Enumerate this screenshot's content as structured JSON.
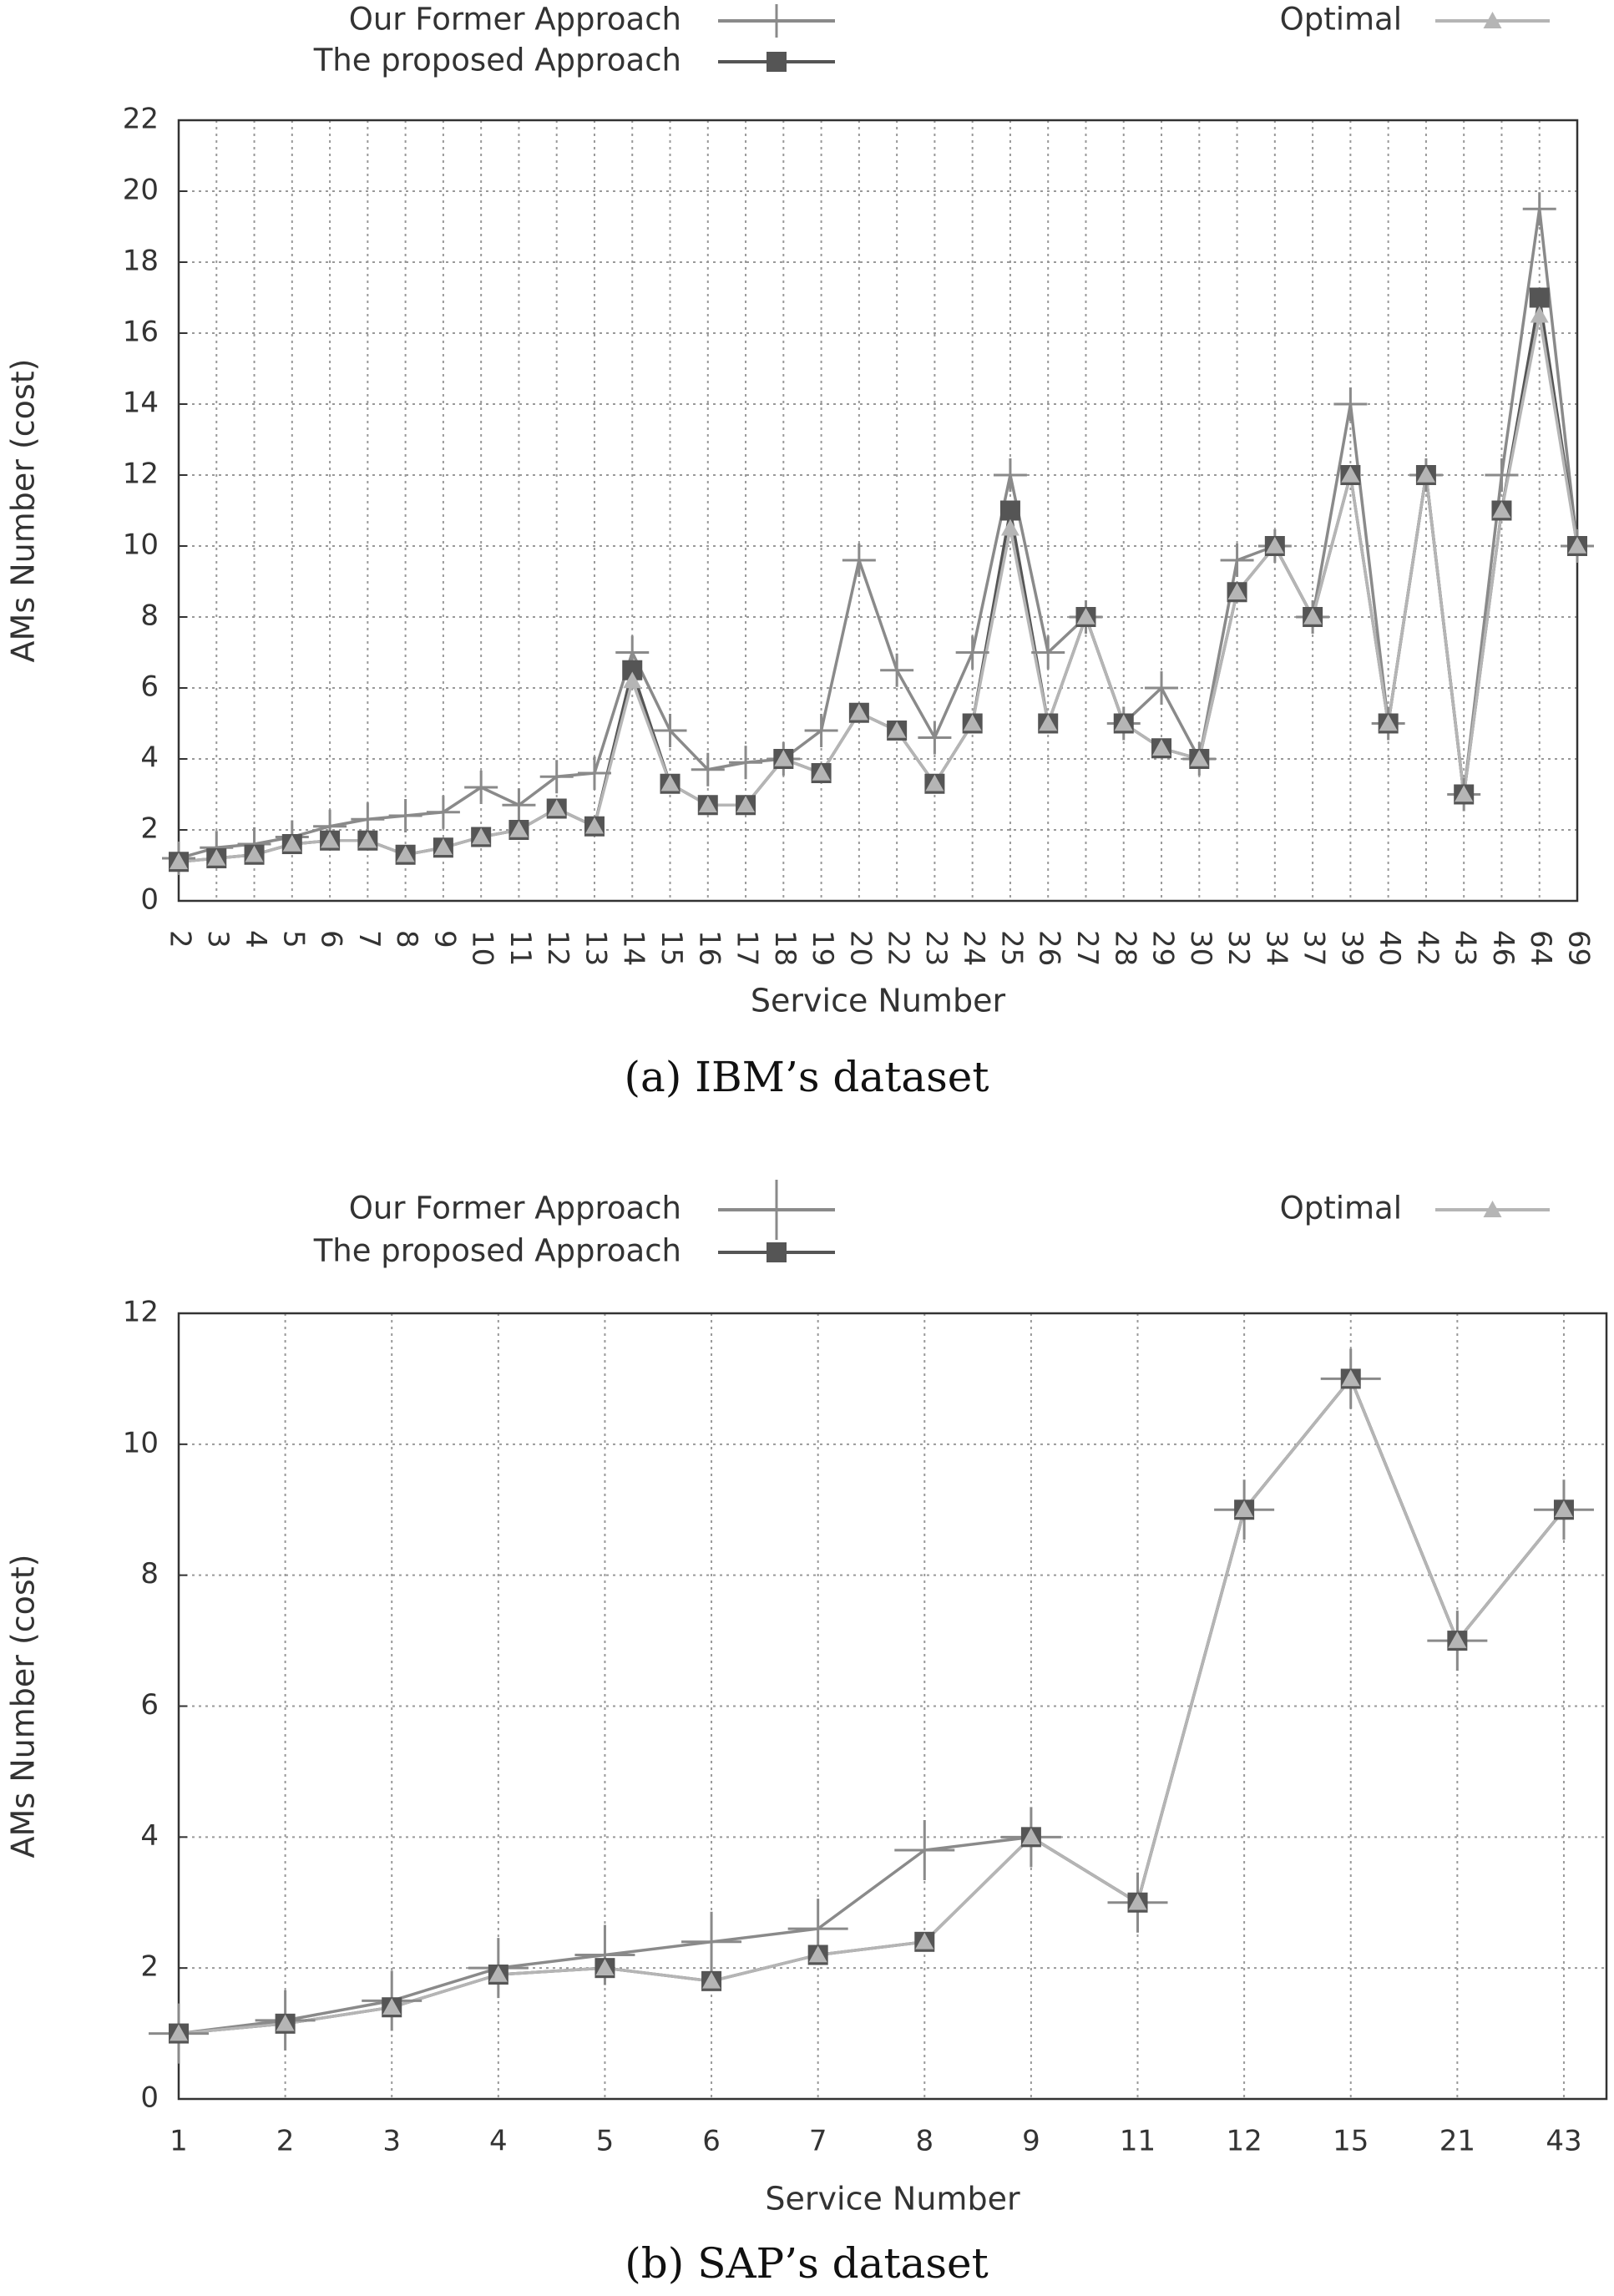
{
  "chart_data": [
    {
      "type": "line",
      "title": "(a) IBM’s dataset",
      "x_label": "Service Number",
      "y_label": "AMs Number (cost)",
      "categories": [
        "2",
        "3",
        "4",
        "5",
        "6",
        "7",
        "8",
        "9",
        "10",
        "11",
        "12",
        "13",
        "14",
        "15",
        "16",
        "17",
        "18",
        "19",
        "20",
        "22",
        "23",
        "24",
        "25",
        "26",
        "27",
        "28",
        "29",
        "30",
        "32",
        "34",
        "37",
        "39",
        "40",
        "42",
        "43",
        "46",
        "64",
        "69"
      ],
      "series": [
        {
          "name": "Our Former Approach",
          "color": "#8a8a8a",
          "marker": "plus",
          "values": [
            1.2,
            1.5,
            1.6,
            1.8,
            2.1,
            2.3,
            2.4,
            2.5,
            3.2,
            2.7,
            3.5,
            3.6,
            7,
            4.8,
            3.7,
            3.9,
            4,
            4.8,
            9.6,
            6.5,
            4.6,
            7,
            12,
            7,
            8,
            5,
            6,
            4,
            9.6,
            10,
            8,
            14,
            5,
            12,
            3,
            12,
            19.5,
            10
          ]
        },
        {
          "name": "The proposed Approach",
          "color": "#555555",
          "marker": "square",
          "values": [
            1.1,
            1.2,
            1.3,
            1.6,
            1.7,
            1.7,
            1.3,
            1.5,
            1.8,
            2,
            2.6,
            2.1,
            6.5,
            3.3,
            2.7,
            2.7,
            4,
            3.6,
            5.3,
            4.8,
            3.3,
            5,
            11,
            5,
            8,
            5,
            4.3,
            4,
            8.7,
            10,
            8,
            12,
            5,
            12,
            3,
            11,
            17,
            10
          ]
        },
        {
          "name": "Optimal",
          "color": "#b5b5b5",
          "marker": "triangle",
          "values": [
            1.1,
            1.2,
            1.3,
            1.6,
            1.7,
            1.7,
            1.3,
            1.5,
            1.8,
            2,
            2.6,
            2.1,
            6.2,
            3.3,
            2.7,
            2.7,
            4,
            3.6,
            5.3,
            4.8,
            3.3,
            5,
            10.5,
            5,
            8,
            5,
            4.3,
            4,
            8.7,
            10,
            8,
            12,
            5,
            12,
            3,
            11,
            16.5,
            10
          ]
        }
      ],
      "ylim": [
        0,
        22
      ],
      "yticks": [
        0,
        2,
        4,
        6,
        8,
        10,
        12,
        14,
        16,
        18,
        20,
        22
      ],
      "grid": true
    },
    {
      "type": "line",
      "title": "(b) SAP’s dataset",
      "x_label": "Service Number",
      "y_label": "AMs Number (cost)",
      "categories": [
        "1",
        "2",
        "3",
        "4",
        "5",
        "6",
        "7",
        "8",
        "9",
        "11",
        "12",
        "15",
        "21",
        "43"
      ],
      "series": [
        {
          "name": "Our Former Approach",
          "color": "#8a8a8a",
          "marker": "plus",
          "values": [
            1,
            1.2,
            1.5,
            2,
            2.2,
            2.4,
            2.6,
            3.8,
            4,
            3,
            9,
            11,
            7,
            9
          ]
        },
        {
          "name": "The proposed Approach",
          "color": "#555555",
          "marker": "square",
          "values": [
            1,
            1.15,
            1.4,
            1.9,
            2,
            1.8,
            2.2,
            2.4,
            4,
            3,
            9,
            11,
            7,
            9
          ]
        },
        {
          "name": "Optimal",
          "color": "#b5b5b5",
          "marker": "triangle",
          "values": [
            1,
            1.15,
            1.4,
            1.9,
            2,
            1.8,
            2.2,
            2.4,
            4,
            3,
            9,
            11,
            7,
            9
          ]
        }
      ],
      "ylim": [
        0,
        12
      ],
      "yticks": [
        0,
        2,
        4,
        6,
        8,
        10,
        12
      ],
      "grid": true
    }
  ]
}
